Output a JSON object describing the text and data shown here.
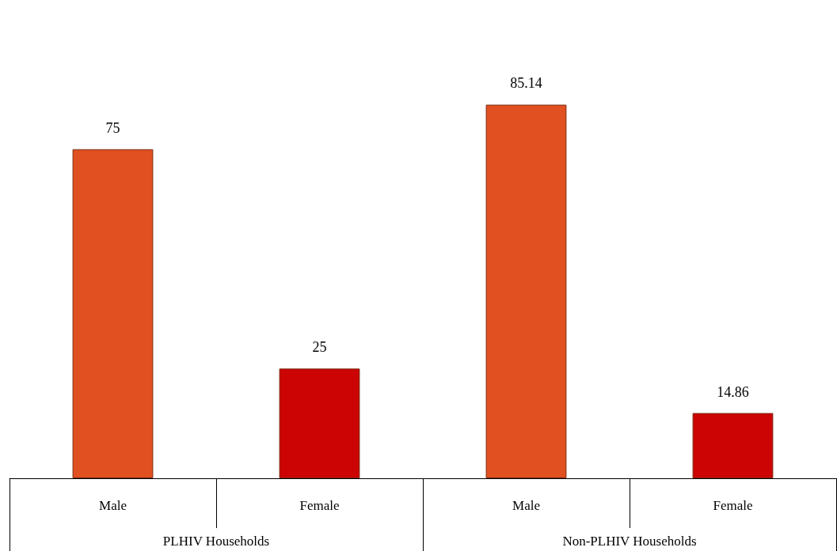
{
  "chart_data": {
    "type": "bar",
    "categories": [
      "Male",
      "Female",
      "Male",
      "Female"
    ],
    "values": [
      75,
      25,
      85.14,
      14.86
    ],
    "colors": [
      "#e05020",
      "#cc0404",
      "#e05020",
      "#cc0404"
    ],
    "data_labels": true,
    "annotations": [
      "PLHIV Households",
      "Non-PLHIV Households"
    ]
  }
}
